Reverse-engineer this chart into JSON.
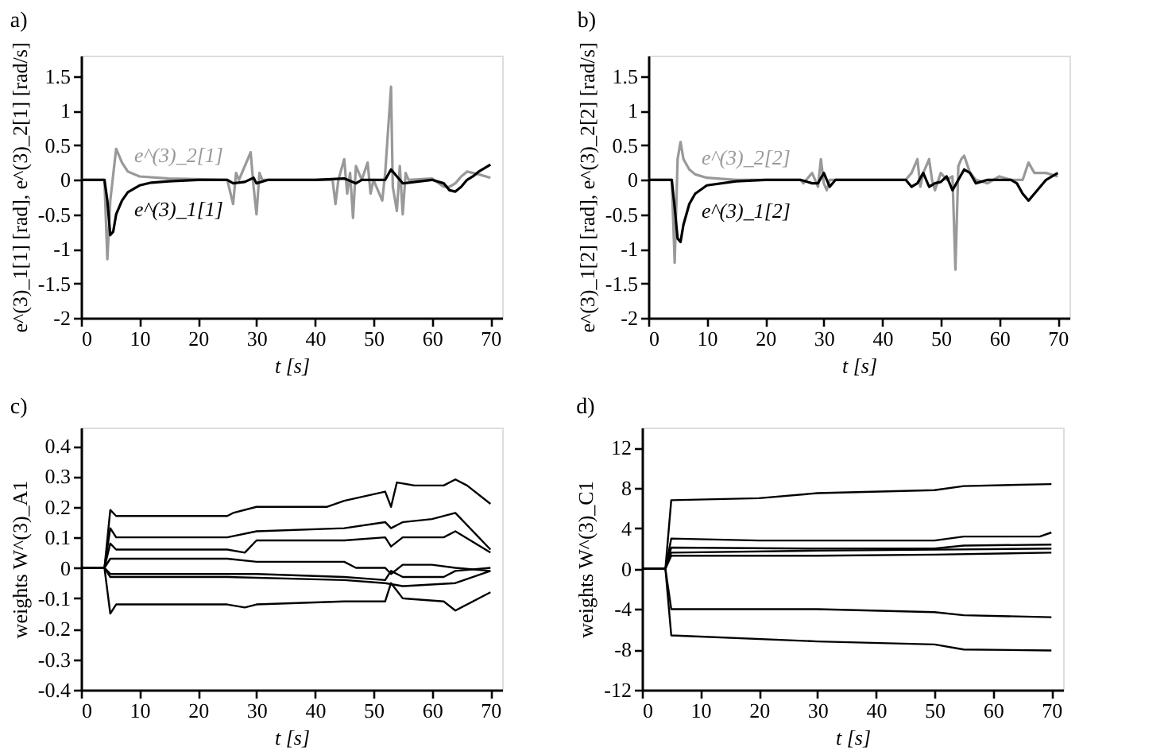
{
  "chart_data": [
    {
      "type": "line",
      "title": "a)",
      "xlabel": "t [s]",
      "ylabel": "e^(3)_1[1] [rad], e^(3)_2[1] [rad/s]",
      "xlim": [
        0,
        72
      ],
      "ylim": [
        -2,
        1.8
      ],
      "xticks": [
        0,
        10,
        20,
        30,
        40,
        50,
        60,
        70
      ],
      "yticks": [
        -2,
        -1.5,
        -1,
        -0.5,
        0,
        0.5,
        1,
        1.5
      ],
      "grid": false,
      "legend": false,
      "line_style": "solid",
      "marker": "none",
      "series": [
        {
          "name": "e^(3)_2[1]",
          "color": "#999999",
          "x": [
            0,
            4,
            4.5,
            5,
            6,
            7,
            8,
            10,
            15,
            25,
            26,
            26.5,
            27,
            29,
            29.5,
            30,
            30.5,
            31,
            43,
            43.5,
            44,
            45,
            45.5,
            46,
            46.5,
            47,
            48,
            49,
            49.5,
            50,
            51.5,
            52,
            53,
            53.3,
            54,
            54.5,
            55,
            55.5,
            56,
            60,
            62,
            63,
            64,
            65,
            66,
            67,
            68,
            70
          ],
          "values": [
            0,
            0,
            -1.15,
            -0.3,
            0.45,
            0.25,
            0.12,
            0.05,
            0.02,
            0,
            -0.35,
            0.1,
            0,
            0.4,
            -0.1,
            -0.5,
            0.1,
            0,
            0,
            -0.35,
            0,
            0.3,
            -0.2,
            0.1,
            -0.55,
            0.2,
            0,
            0.25,
            -0.2,
            0,
            -0.3,
            0.1,
            1.35,
            -0.1,
            -0.45,
            0.2,
            -0.5,
            0.1,
            0,
            0.02,
            -0.1,
            -0.1,
            -0.05,
            0.05,
            0.12,
            0.1,
            0.08,
            0.03
          ]
        },
        {
          "name": "e^(3)_1[1]",
          "color": "#000000",
          "x": [
            0,
            4,
            4.5,
            5,
            5.5,
            6,
            7,
            8,
            10,
            12,
            15,
            20,
            25,
            26,
            28,
            29.5,
            30,
            32,
            40,
            45,
            47,
            48,
            52,
            53,
            54,
            55,
            60,
            62,
            63,
            64,
            65,
            66,
            67,
            68,
            70
          ],
          "values": [
            0,
            0,
            -0.3,
            -0.8,
            -0.75,
            -0.5,
            -0.3,
            -0.18,
            -0.08,
            -0.04,
            -0.02,
            0,
            0,
            -0.05,
            -0.03,
            0.03,
            -0.05,
            0,
            0,
            0.02,
            -0.05,
            0,
            0,
            0.15,
            0.05,
            -0.05,
            0,
            -0.05,
            -0.15,
            -0.17,
            -0.1,
            0,
            0.05,
            0.12,
            0.22
          ]
        }
      ]
    },
    {
      "type": "line",
      "title": "b)",
      "xlabel": "t [s]",
      "ylabel": "e^(3)_1[2] [rad], e^(3)_2[2] [rad/s]",
      "xlim": [
        0,
        72
      ],
      "ylim": [
        -2,
        1.8
      ],
      "xticks": [
        0,
        10,
        20,
        30,
        40,
        50,
        60,
        70
      ],
      "yticks": [
        -2,
        -1.5,
        -1,
        -0.5,
        0,
        0.5,
        1,
        1.5
      ],
      "grid": false,
      "legend": false,
      "line_style": "solid",
      "marker": "none",
      "series": [
        {
          "name": "e^(3)_2[2]",
          "color": "#999999",
          "x": [
            0,
            4,
            4.5,
            5,
            5.5,
            6,
            7,
            8,
            10,
            15,
            26,
            26.5,
            28,
            29,
            29.5,
            30,
            30.5,
            31,
            44,
            45,
            46,
            46.5,
            47,
            48,
            48.5,
            49,
            50,
            51,
            52,
            52.5,
            53,
            53.5,
            54,
            55,
            56,
            58,
            60,
            62,
            64,
            65,
            66,
            68,
            70
          ],
          "values": [
            0,
            0,
            -1.2,
            0.3,
            0.55,
            0.3,
            0.15,
            0.08,
            0.03,
            0,
            0,
            -0.05,
            0.1,
            -0.1,
            0.3,
            -0.05,
            -0.15,
            0,
            0,
            0.1,
            0.3,
            -0.1,
            0.1,
            0.3,
            0,
            -0.15,
            0.1,
            0,
            0.05,
            -1.3,
            0.2,
            0.3,
            0.35,
            0.1,
            0,
            -0.05,
            0.05,
            0,
            0,
            0.25,
            0.1,
            0.1,
            0.05
          ]
        },
        {
          "name": "e^(3)_1[2]",
          "color": "#000000",
          "x": [
            0,
            4,
            4.5,
            5,
            5.5,
            6,
            7,
            8,
            10,
            15,
            20,
            26,
            28,
            29,
            30,
            31,
            32,
            44,
            45,
            46,
            47,
            48,
            49,
            50,
            51,
            52,
            53,
            54,
            55,
            56,
            58,
            60,
            62,
            63,
            64,
            65,
            66,
            68,
            70
          ],
          "values": [
            0,
            0,
            -0.4,
            -0.85,
            -0.9,
            -0.65,
            -0.35,
            -0.2,
            -0.08,
            -0.02,
            0,
            0,
            -0.05,
            -0.05,
            0.1,
            -0.1,
            0,
            0,
            -0.1,
            -0.05,
            0.1,
            -0.1,
            -0.05,
            -0.03,
            0.05,
            -0.15,
            0,
            0.15,
            0.1,
            -0.05,
            0,
            0,
            0,
            -0.05,
            -0.2,
            -0.3,
            -0.2,
            0,
            0.1
          ]
        }
      ]
    },
    {
      "type": "line",
      "title": "c)",
      "xlabel": "t [s]",
      "ylabel": "weights W^(3)_A1",
      "xlim": [
        0,
        72
      ],
      "ylim": [
        -0.4,
        0.46
      ],
      "xticks": [
        0,
        10,
        20,
        30,
        40,
        50,
        60,
        70
      ],
      "yticks": [
        -0.4,
        -0.3,
        -0.2,
        -0.1,
        0,
        0.1,
        0.2,
        0.3,
        0.4
      ],
      "grid": false,
      "legend": false,
      "line_style": "solid",
      "marker": "none",
      "series": [
        {
          "color": "#000000",
          "x": [
            0,
            4,
            5,
            6,
            25,
            26,
            30,
            42,
            45,
            52,
            53,
            54,
            57,
            62,
            64,
            66,
            70
          ],
          "values": [
            0,
            0,
            0.19,
            0.17,
            0.17,
            0.18,
            0.2,
            0.2,
            0.22,
            0.25,
            0.2,
            0.28,
            0.27,
            0.27,
            0.29,
            0.27,
            0.21
          ]
        },
        {
          "color": "#000000",
          "x": [
            0,
            4,
            5,
            6,
            25,
            30,
            45,
            52,
            53,
            55,
            60,
            64,
            70
          ],
          "values": [
            0,
            0,
            0.13,
            0.1,
            0.1,
            0.12,
            0.13,
            0.15,
            0.13,
            0.15,
            0.16,
            0.18,
            0.06
          ]
        },
        {
          "color": "#000000",
          "x": [
            0,
            4,
            5,
            6,
            25,
            28,
            30,
            45,
            52,
            53,
            55,
            62,
            64,
            70
          ],
          "values": [
            0,
            0,
            0.08,
            0.06,
            0.06,
            0.05,
            0.09,
            0.09,
            0.1,
            0.07,
            0.1,
            0.1,
            0.12,
            0.05
          ]
        },
        {
          "color": "#000000",
          "x": [
            0,
            4,
            5,
            25,
            30,
            45,
            47,
            52,
            53,
            55,
            60,
            64,
            70
          ],
          "values": [
            0,
            0,
            0.03,
            0.03,
            0.02,
            0.02,
            0,
            0,
            -0.02,
            0.01,
            0.01,
            0,
            -0.01
          ]
        },
        {
          "color": "#000000",
          "x": [
            0,
            4,
            5,
            25,
            30,
            45,
            52,
            53,
            55,
            62,
            64,
            70
          ],
          "values": [
            0,
            0,
            -0.02,
            -0.02,
            -0.02,
            -0.03,
            -0.04,
            -0.01,
            -0.03,
            -0.03,
            -0.01,
            0
          ]
        },
        {
          "color": "#000000",
          "x": [
            0,
            4,
            5,
            25,
            45,
            52,
            55,
            64,
            70
          ],
          "values": [
            0,
            0,
            -0.03,
            -0.03,
            -0.04,
            -0.05,
            -0.06,
            -0.05,
            -0.01
          ]
        },
        {
          "color": "#000000",
          "x": [
            0,
            4,
            5,
            6,
            25,
            28,
            30,
            45,
            52,
            53,
            55,
            62,
            64,
            70
          ],
          "values": [
            0,
            0,
            -0.15,
            -0.12,
            -0.12,
            -0.13,
            -0.12,
            -0.11,
            -0.11,
            -0.05,
            -0.1,
            -0.11,
            -0.14,
            -0.08
          ]
        }
      ]
    },
    {
      "type": "line",
      "title": "d)",
      "xlabel": "t [s]",
      "ylabel": "weights W^(3)_C1",
      "xlim": [
        0,
        72
      ],
      "ylim": [
        -12,
        14
      ],
      "xticks": [
        0,
        10,
        20,
        30,
        40,
        50,
        60,
        70
      ],
      "yticks": [
        -12,
        -8,
        -4,
        0,
        4,
        8,
        12
      ],
      "grid": false,
      "legend": false,
      "line_style": "solid",
      "marker": "none",
      "series": [
        {
          "color": "#000000",
          "x": [
            0,
            4,
            5,
            20,
            30,
            50,
            55,
            70
          ],
          "values": [
            0,
            0,
            6.8,
            7,
            7.5,
            7.8,
            8.2,
            8.4
          ]
        },
        {
          "color": "#000000",
          "x": [
            0,
            4,
            5,
            20,
            50,
            55,
            68,
            70
          ],
          "values": [
            0,
            0,
            3,
            2.8,
            2.8,
            3.2,
            3.2,
            3.6
          ]
        },
        {
          "color": "#000000",
          "x": [
            0,
            4,
            5,
            30,
            50,
            55,
            70
          ],
          "values": [
            0,
            0,
            2.1,
            2,
            2,
            2.3,
            2.4
          ]
        },
        {
          "color": "#000000",
          "x": [
            0,
            4,
            5,
            30,
            50,
            70
          ],
          "values": [
            0,
            0,
            1.6,
            1.8,
            1.9,
            2
          ]
        },
        {
          "color": "#000000",
          "x": [
            0,
            4,
            5,
            30,
            50,
            70
          ],
          "values": [
            0,
            0,
            1.3,
            1.3,
            1.4,
            1.6
          ]
        },
        {
          "color": "#000000",
          "x": [
            0,
            4,
            5,
            30,
            50,
            55,
            70
          ],
          "values": [
            0,
            0,
            -4,
            -4,
            -4.3,
            -4.6,
            -4.8
          ]
        },
        {
          "color": "#000000",
          "x": [
            0,
            4,
            5,
            30,
            50,
            55,
            70
          ],
          "values": [
            0,
            0,
            -6.6,
            -7.2,
            -7.5,
            -8,
            -8.1
          ]
        }
      ]
    }
  ]
}
